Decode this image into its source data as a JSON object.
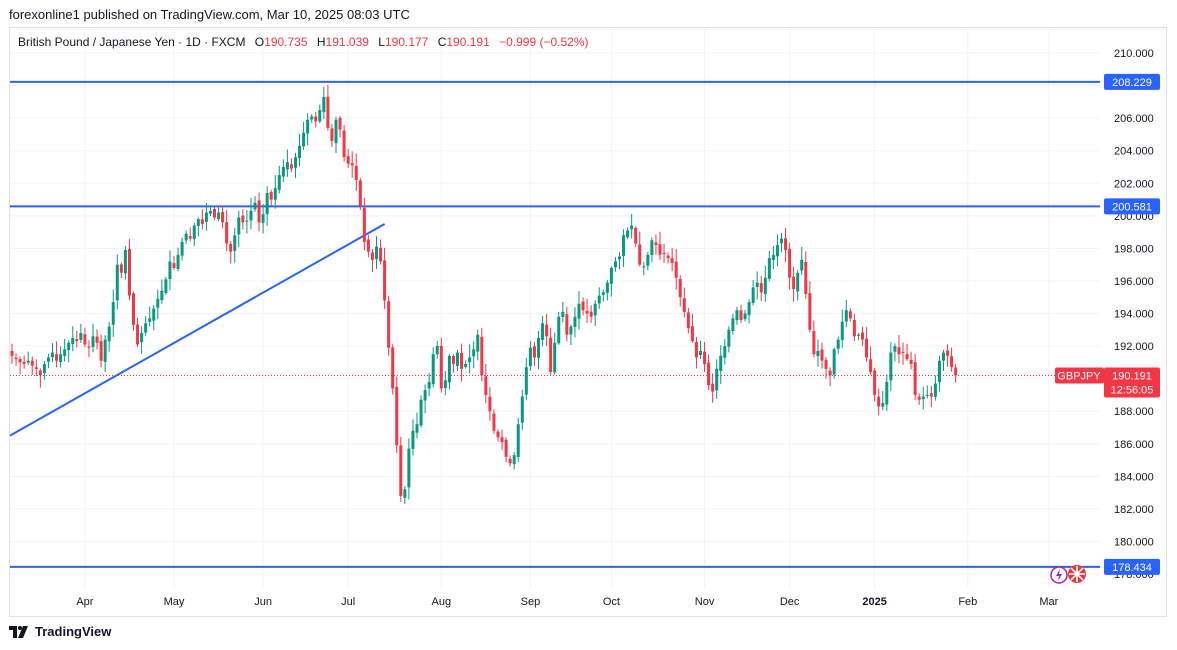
{
  "publisher": "forexonline1 published on TradingView.com, Mar 10, 2025 08:03 UTC",
  "legend": {
    "title": "British Pound / Japanese Yen · 1D · FXCM",
    "o_label": "O",
    "o_value": "190.735",
    "h_label": "H",
    "h_value": "191.039",
    "l_label": "L",
    "l_value": "190.177",
    "c_label": "C",
    "c_value": "190.191",
    "change": "−0.999 (−0.52%)"
  },
  "footer": {
    "brand": "TradingView"
  },
  "colors": {
    "up": "#089981",
    "down": "#f23645",
    "line": "#2962ff",
    "grid": "#f0f3fa"
  },
  "chart_data": {
    "type": "candlestick",
    "symbol": "GBPJPY",
    "title": "British Pound / Japanese Yen · 1D · FXCM",
    "y_ticks": [
      "210.000",
      "208.000",
      "206.000",
      "204.000",
      "202.000",
      "200.000",
      "198.000",
      "196.000",
      "194.000",
      "192.000",
      "190.000",
      "188.000",
      "186.000",
      "184.000",
      "182.000",
      "180.000",
      "178.000"
    ],
    "ylim": [
      177.2,
      211.3
    ],
    "x_labels": [
      {
        "label": "Apr",
        "index": 18,
        "bold": false
      },
      {
        "label": "May",
        "index": 40,
        "bold": false
      },
      {
        "label": "Jun",
        "index": 62,
        "bold": false
      },
      {
        "label": "Jul",
        "index": 83,
        "bold": false
      },
      {
        "label": "Aug",
        "index": 106,
        "bold": false
      },
      {
        "label": "Sep",
        "index": 128,
        "bold": false
      },
      {
        "label": "Oct",
        "index": 148,
        "bold": false
      },
      {
        "label": "Nov",
        "index": 171,
        "bold": false
      },
      {
        "label": "Dec",
        "index": 192,
        "bold": false
      },
      {
        "label": "2025",
        "index": 213,
        "bold": true
      },
      {
        "label": "Feb",
        "index": 236,
        "bold": false
      },
      {
        "label": "Mar",
        "index": 256,
        "bold": false
      }
    ],
    "horizontal_levels": [
      {
        "name": "resistance-high",
        "value": 208.229,
        "label": "208.229"
      },
      {
        "name": "resistance-mid",
        "value": 200.581,
        "label": "200.581"
      },
      {
        "name": "support-low",
        "value": 178.434,
        "label": "178.434"
      }
    ],
    "trendline": {
      "start_index": 0,
      "start_value": 186.5,
      "end_index": 92,
      "end_value": 199.5
    },
    "last_price": {
      "label": "GBPJPY",
      "value": "190.191",
      "countdown": "12:56:05",
      "numeric": 190.191
    },
    "closes": [
      191.4,
      191.2,
      191.0,
      190.9,
      191.1,
      190.8,
      190.6,
      190.2,
      190.9,
      191.3,
      191.6,
      191.1,
      191.5,
      191.8,
      192.2,
      192.5,
      192.3,
      192.8,
      192.1,
      191.9,
      192.6,
      192.2,
      191.1,
      192.4,
      193.2,
      194.7,
      197.0,
      196.5,
      197.9,
      195.1,
      193.3,
      192.1,
      192.8,
      193.4,
      193.7,
      194.3,
      194.9,
      195.4,
      196.1,
      197.2,
      196.8,
      197.6,
      198.4,
      198.9,
      198.6,
      199.4,
      199.8,
      199.5,
      200.2,
      200.3,
      199.9,
      200.2,
      199.6,
      198.3,
      197.8,
      198.8,
      199.9,
      199.6,
      199.7,
      200.3,
      200.8,
      199.6,
      200.1,
      201.4,
      201.0,
      201.7,
      202.5,
      203.0,
      203.3,
      202.9,
      203.6,
      204.3,
      205.1,
      205.9,
      206.1,
      205.8,
      206.5,
      207.3,
      205.4,
      204.6,
      205.9,
      205.3,
      203.6,
      203.2,
      203.1,
      202.2,
      200.6,
      198.4,
      197.8,
      197.3,
      198.1,
      197.2,
      194.8,
      191.9,
      189.4,
      185.9,
      182.8,
      183.2,
      185.7,
      186.8,
      187.2,
      188.7,
      189.3,
      189.8,
      191.5,
      192.0,
      189.4,
      189.9,
      191.4,
      190.9,
      191.6,
      190.6,
      190.9,
      191.3,
      191.8,
      192.7,
      190.2,
      189.0,
      188.0,
      186.8,
      186.4,
      186.1,
      185.2,
      184.8,
      185.3,
      187.2,
      188.9,
      190.7,
      191.9,
      191.3,
      192.5,
      193.4,
      192.6,
      190.4,
      192.2,
      193.8,
      194.1,
      192.7,
      193.2,
      193.8,
      194.6,
      194.2,
      194.0,
      193.8,
      194.6,
      195.1,
      195.3,
      195.9,
      196.8,
      197.2,
      197.5,
      198.8,
      199.1,
      199.4,
      198.3,
      197.0,
      196.9,
      197.6,
      198.5,
      198.2,
      197.6,
      197.7,
      197.4,
      197.1,
      196.2,
      195.0,
      194.1,
      193.1,
      192.3,
      191.3,
      191.7,
      190.9,
      189.6,
      189.2,
      190.6,
      191.4,
      192.0,
      193.0,
      193.7,
      194.2,
      193.6,
      194.0,
      194.7,
      195.6,
      195.9,
      195.3,
      196.2,
      197.4,
      197.6,
      198.2,
      198.6,
      197.9,
      196.2,
      195.5,
      196.5,
      197.3,
      195.2,
      193.0,
      191.5,
      191.7,
      191.1,
      190.6,
      190.2,
      191.8,
      192.4,
      193.5,
      194.2,
      193.7,
      192.6,
      192.7,
      192.4,
      191.3,
      190.4,
      189.0,
      188.3,
      188.5,
      189.8,
      191.6,
      192.0,
      191.5,
      191.6,
      191.2,
      190.9,
      189.0,
      188.7,
      188.9,
      189.0,
      188.9,
      189.7,
      191.1,
      191.6,
      191.4,
      190.7,
      190.2
    ]
  }
}
